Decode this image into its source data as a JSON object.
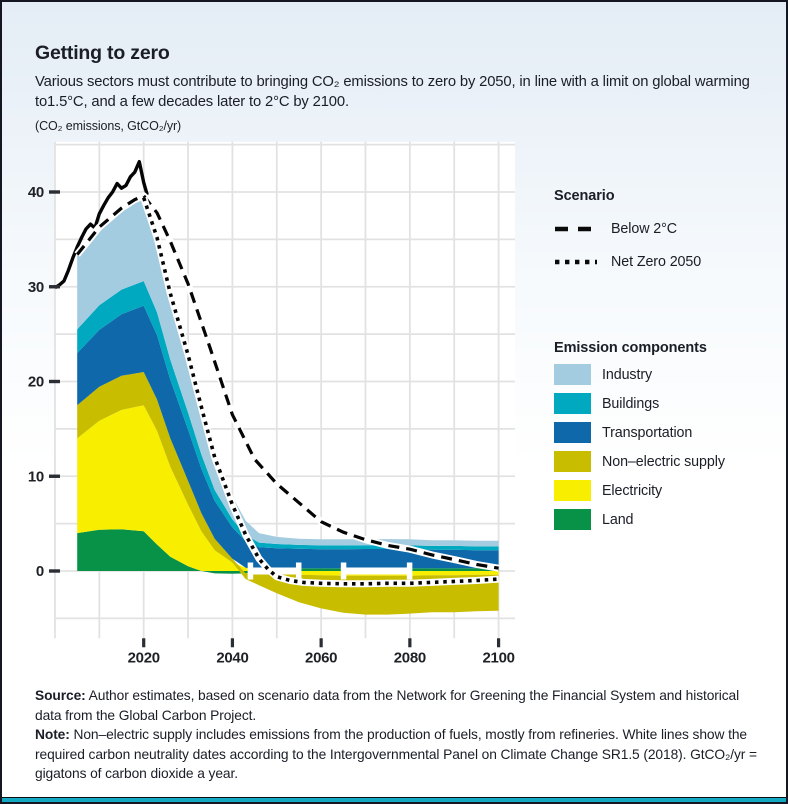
{
  "header": {
    "title": "Getting to zero",
    "subtitle": "Various sectors must contribute to bringing CO₂ emissions to zero by 2050, in line with a limit on global warming to1.5°C, and a few decades later to 2°C by 2100.",
    "units": "(CO₂ emissions, GtCO₂/yr)"
  },
  "legend": {
    "scenario_title": "Scenario",
    "scenarios": [
      {
        "label": "Below 2°C",
        "style": "dashed"
      },
      {
        "label": "Net Zero 2050",
        "style": "dotted"
      }
    ],
    "components_title": "Emission components",
    "components": [
      {
        "label": "Industry",
        "color": "#a4cce0"
      },
      {
        "label": "Buildings",
        "color": "#00a8c0"
      },
      {
        "label": "Transportation",
        "color": "#0f68a9"
      },
      {
        "label": "Non–electric supply",
        "color": "#c9bd00"
      },
      {
        "label": "Electricity",
        "color": "#f8ee00"
      },
      {
        "label": "Land",
        "color": "#089247"
      }
    ]
  },
  "footer": {
    "source_label": "Source:",
    "source_text": " Author estimates, based on scenario data from the Network for Greening the Financial System and historical data from the Global Carbon Project.",
    "note_label": "Note:",
    "note_text": " Non–electric supply includes emissions from the production of fuels, mostly from refineries. White lines show the required carbon neutrality dates according to the Intergovernmental Panel on Climate Change SR1.5 (2018). GtCO₂/yr = gigatons of carbon dioxide a year."
  },
  "chart_data": {
    "type": "area",
    "title": "Getting to zero",
    "ylabel": "CO₂ emissions, GtCO₂/yr",
    "x_range": [
      2000,
      2103.7
    ],
    "y_range": [
      -7.1,
      45.3
    ],
    "x_ticks": [
      2020,
      2040,
      2060,
      2080,
      2100
    ],
    "y_ticks": [
      0,
      10,
      20,
      30,
      40
    ],
    "x_grid": {
      "from": 2000,
      "to": 2100,
      "step": 10
    },
    "y_grid": {
      "from": -5,
      "to": 45,
      "step": 5
    },
    "grid_color": "#e2e2e2",
    "plot_bg": "#ffffff",
    "stack_years": [
      2005,
      2010,
      2015,
      2020,
      2023,
      2026,
      2030,
      2033,
      2036,
      2040,
      2043,
      2046,
      2050,
      2055,
      2060,
      2065,
      2070,
      2075,
      2080,
      2085,
      2090,
      2095,
      2100
    ],
    "series": [
      {
        "name": "Land",
        "color": "#089247",
        "values": [
          4.0,
          4.35,
          4.4,
          4.2,
          2.8,
          1.5,
          0.5,
          0.0,
          -0.25,
          -0.3,
          -0.25,
          -0.1,
          0.2,
          0.3,
          0.3,
          0.3,
          0.32,
          0.32,
          0.3,
          0.3,
          0.3,
          0.3,
          0.3
        ]
      },
      {
        "name": "Electricity",
        "color": "#f8ee00",
        "values": [
          10.0,
          11.5,
          12.6,
          13.3,
          12.0,
          9.5,
          6.5,
          4.2,
          2.2,
          0.9,
          0.35,
          0.05,
          -0.25,
          -0.4,
          -0.45,
          -0.5,
          -0.5,
          -0.5,
          -0.5,
          -0.45,
          -0.45,
          -0.4,
          -0.4
        ]
      },
      {
        "name": "Non–electric supply",
        "color": "#c9bd00",
        "values": [
          3.5,
          3.6,
          3.6,
          3.5,
          3.3,
          3.0,
          2.5,
          1.9,
          1.2,
          0.4,
          -0.6,
          -1.4,
          -2.1,
          -2.9,
          -3.5,
          -3.9,
          -4.1,
          -4.1,
          -4.0,
          -3.9,
          -3.9,
          -3.85,
          -3.8
        ]
      },
      {
        "name": "Transportation",
        "color": "#0f68a9",
        "values": [
          5.5,
          6.0,
          6.5,
          7.0,
          6.8,
          6.2,
          5.4,
          4.7,
          4.0,
          3.3,
          2.8,
          2.45,
          2.2,
          2.05,
          2.0,
          2.0,
          2.0,
          2.0,
          2.0,
          1.95,
          1.95,
          1.9,
          1.9
        ]
      },
      {
        "name": "Buildings",
        "color": "#00a8c0",
        "values": [
          2.5,
          2.6,
          2.6,
          2.6,
          2.4,
          2.1,
          1.8,
          1.5,
          1.15,
          0.85,
          0.65,
          0.5,
          0.45,
          0.4,
          0.4,
          0.4,
          0.4,
          0.4,
          0.4,
          0.4,
          0.4,
          0.4,
          0.4
        ]
      },
      {
        "name": "Industry",
        "color": "#a4cce0",
        "values": [
          8.0,
          8.5,
          8.4,
          8.7,
          7.9,
          6.8,
          5.8,
          4.6,
          3.3,
          2.4,
          1.5,
          1.0,
          0.75,
          0.65,
          0.65,
          0.65,
          0.65,
          0.65,
          0.65,
          0.6,
          0.6,
          0.6,
          0.6
        ]
      }
    ],
    "lines": [
      {
        "name": "Historical",
        "style": "solid",
        "points": [
          [
            2000,
            29.9
          ],
          [
            2001,
            30.2
          ],
          [
            2002,
            30.6
          ],
          [
            2003,
            31.7
          ],
          [
            2004,
            33.0
          ],
          [
            2005,
            34.2
          ],
          [
            2006,
            35.2
          ],
          [
            2007,
            36.1
          ],
          [
            2008,
            36.6
          ],
          [
            2009,
            36.2
          ],
          [
            2010,
            37.7
          ],
          [
            2011,
            38.6
          ],
          [
            2012,
            39.4
          ],
          [
            2013,
            40.0
          ],
          [
            2014,
            40.9
          ],
          [
            2015,
            40.4
          ],
          [
            2016,
            40.7
          ],
          [
            2017,
            41.6
          ],
          [
            2018,
            42.1
          ],
          [
            2019,
            43.2
          ],
          [
            2020,
            41.0
          ],
          [
            2020.8,
            39.7
          ]
        ]
      },
      {
        "name": "Below 2°C",
        "style": "dashed",
        "points": [
          [
            2005,
            33.4
          ],
          [
            2010,
            36.3
          ],
          [
            2015,
            38.3
          ],
          [
            2018,
            39.2
          ],
          [
            2020,
            39.6
          ],
          [
            2023,
            37.8
          ],
          [
            2026,
            34.8
          ],
          [
            2030,
            30.3
          ],
          [
            2035,
            23.5
          ],
          [
            2040,
            16.5
          ],
          [
            2045,
            11.8
          ],
          [
            2050,
            9.2
          ],
          [
            2055,
            7.2
          ],
          [
            2060,
            5.2
          ],
          [
            2065,
            4.1
          ],
          [
            2070,
            3.3
          ],
          [
            2075,
            2.7
          ],
          [
            2080,
            2.3
          ],
          [
            2085,
            1.7
          ],
          [
            2090,
            1.2
          ],
          [
            2095,
            0.7
          ],
          [
            2100,
            0.3
          ]
        ]
      },
      {
        "name": "Net Zero 2050",
        "style": "dotted",
        "points": [
          [
            2020,
            39.4
          ],
          [
            2023,
            35.2
          ],
          [
            2026,
            29.3
          ],
          [
            2030,
            22.8
          ],
          [
            2033,
            17.3
          ],
          [
            2036,
            12.0
          ],
          [
            2040,
            7.0
          ],
          [
            2043,
            3.8
          ],
          [
            2046,
            1.3
          ],
          [
            2048,
            0.2
          ],
          [
            2050,
            -0.6
          ],
          [
            2053,
            -1.0
          ],
          [
            2056,
            -1.2
          ],
          [
            2060,
            -1.3
          ],
          [
            2065,
            -1.35
          ],
          [
            2070,
            -1.35
          ],
          [
            2075,
            -1.3
          ],
          [
            2080,
            -1.3
          ],
          [
            2085,
            -1.2
          ],
          [
            2090,
            -1.1
          ],
          [
            2095,
            -1.0
          ],
          [
            2100,
            -0.85
          ]
        ]
      }
    ],
    "neutrality_bars": [
      {
        "from": 2044,
        "to": 2055
      },
      {
        "from": 2065,
        "to": 2080
      }
    ]
  }
}
